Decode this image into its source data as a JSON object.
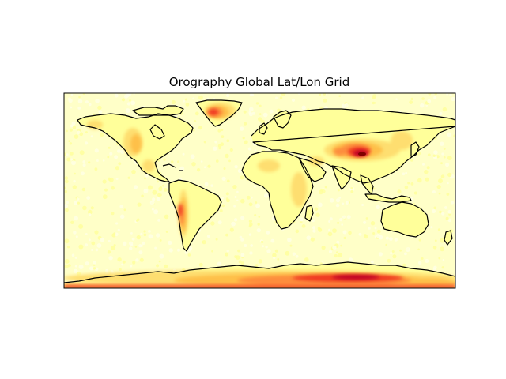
{
  "title": "Orography Global Lat/Lon Grid",
  "colors": {
    "background": "#ffffff",
    "ocean_base": "#ffffc8",
    "ocean_speckle": "#ffffe6",
    "land_low": "#ffff9a",
    "land_mid_low": "#fede70",
    "land_mid": "#fec048",
    "land_mid_high": "#fd8d3c",
    "land_high": "#f03b20",
    "land_peak": "#bd0026",
    "land_extreme": "#800000",
    "coastline": "#000000",
    "frame": "#000000"
  },
  "colormap": "hot_r",
  "projection": "cylindrical lat/lon",
  "lon_range": [
    -180,
    180
  ],
  "lat_range": [
    -90,
    90
  ]
}
